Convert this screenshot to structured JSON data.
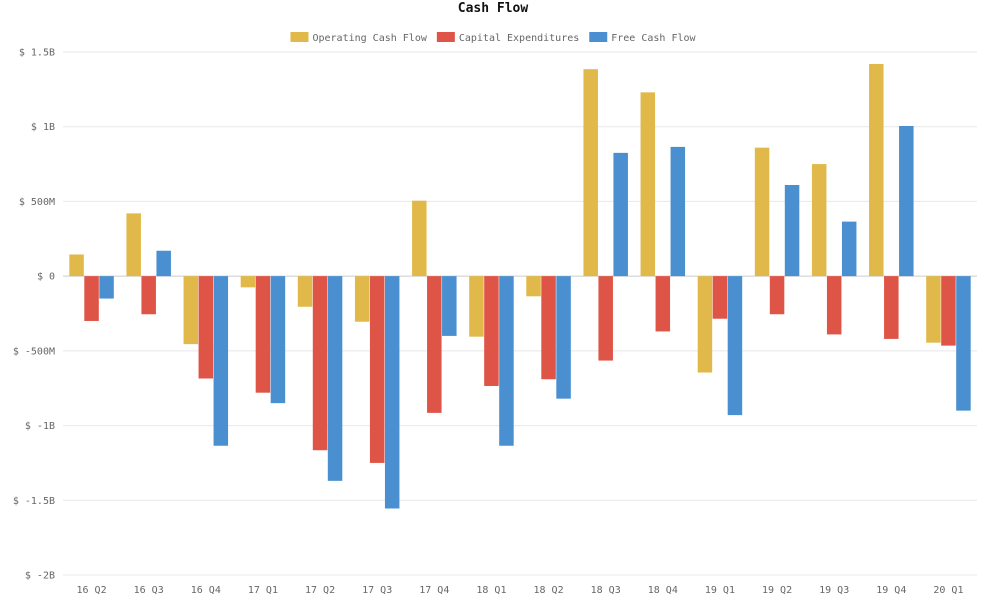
{
  "chart_data": {
    "type": "bar",
    "title": "Cash Flow",
    "xlabel": "",
    "ylabel": "",
    "ylim": [
      -2000,
      1500
    ],
    "y_unit": "M",
    "grid": true,
    "legend_position": "top-center",
    "categories": [
      "16 Q2",
      "16 Q3",
      "16 Q4",
      "17 Q1",
      "17 Q2",
      "17 Q3",
      "17 Q4",
      "18 Q1",
      "18 Q2",
      "18 Q3",
      "18 Q4",
      "19 Q1",
      "19 Q2",
      "19 Q3",
      "19 Q4",
      "20 Q1"
    ],
    "y_ticks": [
      {
        "value": 1500,
        "label": "$ 1.5B"
      },
      {
        "value": 1000,
        "label": "$ 1B"
      },
      {
        "value": 500,
        "label": "$ 500M"
      },
      {
        "value": 0,
        "label": "$ 0"
      },
      {
        "value": -500,
        "label": "$ -500M"
      },
      {
        "value": -1000,
        "label": "$ -1B"
      },
      {
        "value": -1500,
        "label": "$ -1.5B"
      },
      {
        "value": -2000,
        "label": "$ -2B"
      }
    ],
    "series": [
      {
        "name": "Operating Cash Flow",
        "color": "#e0b94a",
        "values": [
          145,
          420,
          -455,
          -75,
          -205,
          -305,
          505,
          -405,
          -135,
          1385,
          1230,
          -645,
          860,
          750,
          1420,
          -445
        ]
      },
      {
        "name": "Capital Expenditures",
        "color": "#de5446",
        "values": [
          -300,
          -255,
          -685,
          -780,
          -1165,
          -1250,
          -915,
          -735,
          -690,
          -565,
          -370,
          -285,
          -255,
          -390,
          -420,
          -465
        ]
      },
      {
        "name": "Free Cash Flow",
        "color": "#4a90d0",
        "values": [
          -150,
          170,
          -1135,
          -850,
          -1370,
          -1555,
          -400,
          -1135,
          -820,
          825,
          865,
          -930,
          610,
          365,
          1005,
          -900
        ]
      }
    ]
  }
}
